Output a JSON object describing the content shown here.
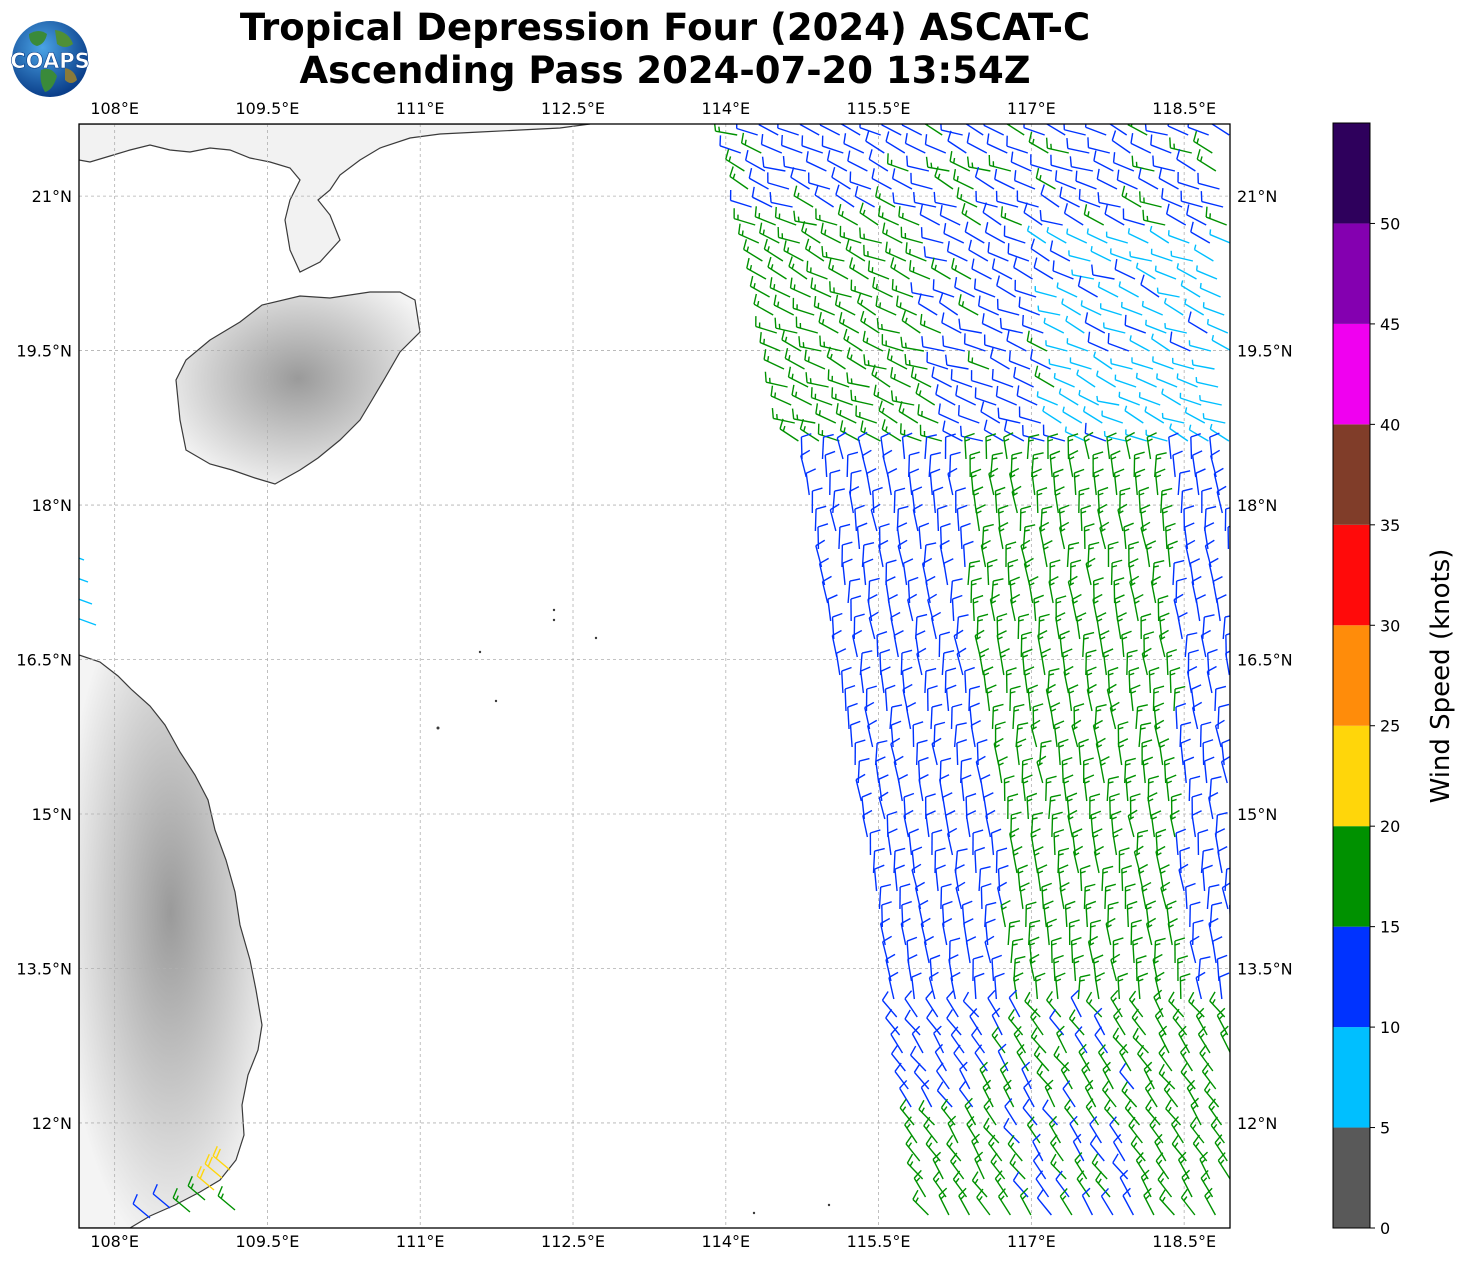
{
  "title": {
    "line1": "Tropical Depression Four (2024) ASCAT-C",
    "line2": "Ascending Pass 2024-07-20 13:54Z"
  },
  "logo": {
    "text": "COAPS"
  },
  "map": {
    "lon_range": [
      107.65,
      118.95
    ],
    "lat_range": [
      10.98,
      21.7
    ],
    "lon_ticks": [
      "108°E",
      "109.5°E",
      "111°E",
      "112.5°E",
      "114°E",
      "115.5°E",
      "117°E",
      "118.5°E"
    ],
    "lat_ticks": [
      "21°N",
      "19.5°N",
      "18°N",
      "16.5°N",
      "15°N",
      "13.5°N",
      "12°N"
    ],
    "gridlines": true
  },
  "colorbar": {
    "label": "Wind Speed (knots)",
    "tick_labels": [
      "0",
      "5",
      "10",
      "15",
      "20",
      "25",
      "30",
      "35",
      "40",
      "45",
      "50"
    ],
    "bins": [
      {
        "from": 0,
        "to": 5,
        "color": "#595959"
      },
      {
        "from": 5,
        "to": 10,
        "color": "#00bfff"
      },
      {
        "from": 10,
        "to": 15,
        "color": "#0033ff"
      },
      {
        "from": 15,
        "to": 20,
        "color": "#009100"
      },
      {
        "from": 20,
        "to": 25,
        "color": "#ffd60a"
      },
      {
        "from": 25,
        "to": 30,
        "color": "#ff8c0a"
      },
      {
        "from": 30,
        "to": 35,
        "color": "#ff0a0a"
      },
      {
        "from": 35,
        "to": 40,
        "color": "#803d29"
      },
      {
        "from": 40,
        "to": 45,
        "color": "#f000f0"
      },
      {
        "from": 45,
        "to": 50,
        "color": "#8400b0"
      },
      {
        "from": 50,
        "to": 55,
        "color": "#2e005c"
      }
    ]
  }
}
